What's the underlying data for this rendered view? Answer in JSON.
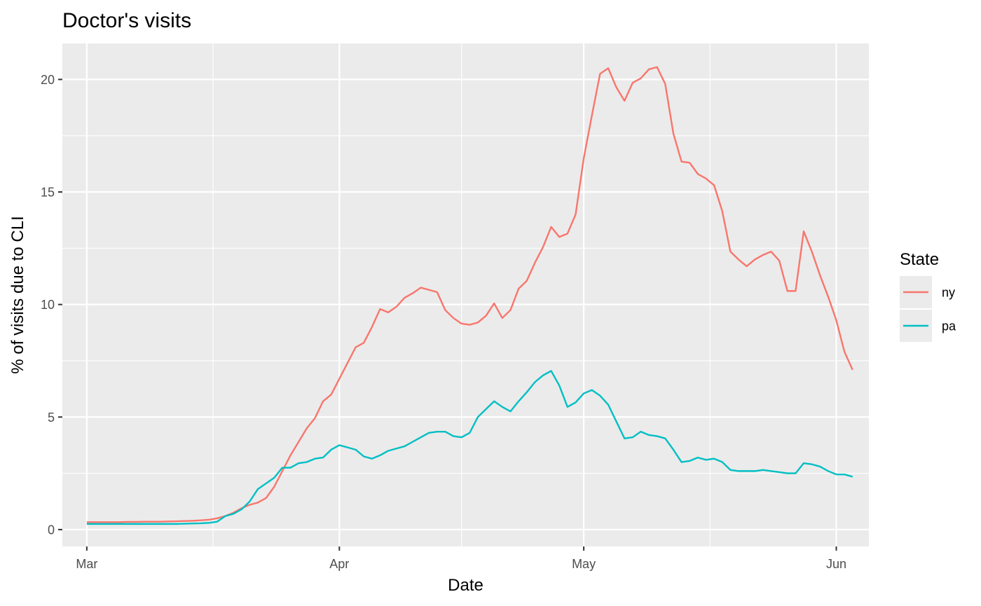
{
  "chart_data": {
    "type": "line",
    "title": "Doctor's visits",
    "xlabel": "Date",
    "ylabel": "% of visits due to CLI",
    "x_start": "2020-03-01",
    "x_end": "2020-06-01",
    "xlim": [
      "2020-02-27",
      "2020-06-05"
    ],
    "ylim": [
      -0.75,
      21.6
    ],
    "x_ticks": [
      {
        "label": "Mar",
        "date": "2020-03-01"
      },
      {
        "label": "Apr",
        "date": "2020-04-01"
      },
      {
        "label": "May",
        "date": "2020-05-01"
      },
      {
        "label": "Jun",
        "date": "2020-06-01"
      }
    ],
    "y_ticks": [
      0,
      5,
      10,
      15,
      20
    ],
    "grid": true,
    "legend_position": "right",
    "legend": {
      "title": "State",
      "entries": [
        "ny",
        "pa"
      ]
    },
    "series": [
      {
        "name": "ny",
        "color": "#F8766D",
        "values": [
          0.33,
          0.33,
          0.33,
          0.33,
          0.33,
          0.34,
          0.34,
          0.35,
          0.35,
          0.35,
          0.36,
          0.37,
          0.38,
          0.39,
          0.41,
          0.44,
          0.5,
          0.6,
          0.75,
          0.95,
          1.1,
          1.2,
          1.4,
          1.9,
          2.6,
          3.3,
          3.9,
          4.5,
          4.95,
          5.7,
          6.0,
          6.7,
          7.4,
          8.1,
          8.3,
          9.0,
          9.8,
          9.65,
          9.9,
          10.3,
          10.5,
          10.75,
          10.65,
          10.55,
          9.75,
          9.4,
          9.15,
          9.1,
          9.2,
          9.5,
          10.05,
          9.4,
          9.75,
          10.7,
          11.05,
          11.85,
          12.55,
          13.45,
          13.0,
          13.15,
          14.0,
          16.5,
          18.4,
          20.25,
          20.5,
          19.65,
          19.05,
          19.85,
          20.05,
          20.45,
          20.55,
          19.8,
          17.6,
          16.35,
          16.3,
          15.8,
          15.6,
          15.3,
          14.15,
          12.35,
          12.0,
          11.7,
          12.0,
          12.2,
          12.35,
          11.95,
          10.6,
          10.6,
          13.25,
          12.35,
          11.3,
          10.35,
          9.3,
          7.9,
          7.1
        ]
      },
      {
        "name": "pa",
        "color": "#00BFC4",
        "values": [
          0.25,
          0.25,
          0.25,
          0.25,
          0.25,
          0.25,
          0.25,
          0.25,
          0.25,
          0.25,
          0.25,
          0.25,
          0.26,
          0.27,
          0.28,
          0.3,
          0.35,
          0.6,
          0.7,
          0.9,
          1.25,
          1.8,
          2.05,
          2.3,
          2.75,
          2.75,
          2.95,
          3.0,
          3.15,
          3.2,
          3.55,
          3.75,
          3.65,
          3.55,
          3.25,
          3.15,
          3.3,
          3.5,
          3.6,
          3.7,
          3.9,
          4.1,
          4.3,
          4.35,
          4.35,
          4.15,
          4.1,
          4.3,
          5.0,
          5.35,
          5.7,
          5.45,
          5.25,
          5.7,
          6.1,
          6.55,
          6.85,
          7.05,
          6.4,
          5.45,
          5.65,
          6.05,
          6.2,
          5.95,
          5.55,
          4.8,
          4.05,
          4.1,
          4.35,
          4.2,
          4.15,
          4.05,
          3.55,
          3.0,
          3.05,
          3.2,
          3.1,
          3.15,
          3.0,
          2.65,
          2.6,
          2.6,
          2.6,
          2.65,
          2.6,
          2.55,
          2.5,
          2.5,
          2.95,
          2.9,
          2.8,
          2.6,
          2.45,
          2.45,
          2.35
        ]
      }
    ]
  }
}
